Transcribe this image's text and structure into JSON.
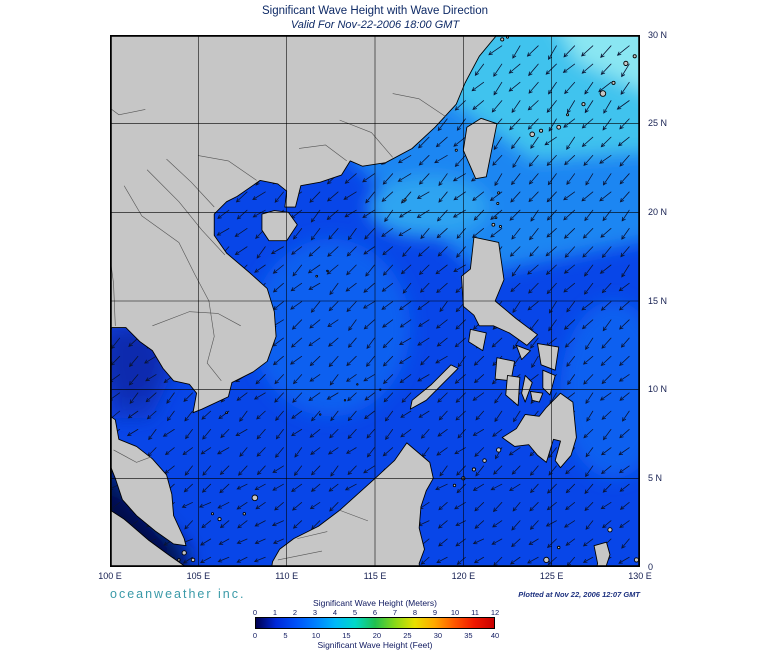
{
  "header": {
    "title": "Significant Wave Height with Wave Direction",
    "subtitle": "Valid For Nov-22-2006 18:00 GMT"
  },
  "axes": {
    "lat_ticks": [
      "30 N",
      "25 N",
      "20 N",
      "15 N",
      "10 N",
      "5 N",
      "0"
    ],
    "lon_ticks": [
      "100 E",
      "105 E",
      "110 E",
      "115 E",
      "120 E",
      "125 E",
      "130 E"
    ]
  },
  "footer": {
    "branding": "oceanweather inc.",
    "plotted_at": "Plotted at Nov 22, 2006 12:07 GMT"
  },
  "legend": {
    "meters_label": "Significant Wave Height (Meters)",
    "feet_label": "Significant Wave Height (Feet)",
    "meters_ticks": [
      "0",
      "1",
      "2",
      "3",
      "4",
      "5",
      "6",
      "7",
      "8",
      "9",
      "10",
      "11",
      "12"
    ],
    "feet_ticks": [
      "0",
      "5",
      "10",
      "15",
      "20",
      "25",
      "30",
      "35",
      "40"
    ],
    "colors": [
      "#000050",
      "#0028d8",
      "#0050f8",
      "#0080ff",
      "#00b8f8",
      "#00d8c8",
      "#20c050",
      "#88d818",
      "#e8e000",
      "#ffa800",
      "#ff5800",
      "#f01800",
      "#c80000"
    ]
  },
  "map_style": {
    "ocean_base": "#0846e8",
    "land": "#c6c6c6",
    "arrow_color": "#0a1433"
  },
  "chart_data": {
    "type": "heatmap",
    "title": "Significant Wave Height with Wave Direction",
    "valid_for": "Nov-22-2006 18:00 GMT",
    "lon_range": [
      "100 E",
      "130 E"
    ],
    "lat_range": [
      "0",
      "30 N"
    ],
    "units": [
      "Meters",
      "Feet"
    ],
    "scale_meters": [
      0,
      1,
      2,
      3,
      4,
      5,
      6,
      7,
      8,
      9,
      10,
      11,
      12
    ],
    "scale_feet": [
      0,
      5,
      10,
      15,
      20,
      25,
      30,
      35,
      40
    ],
    "legend_position": "bottom",
    "grid": true
  }
}
